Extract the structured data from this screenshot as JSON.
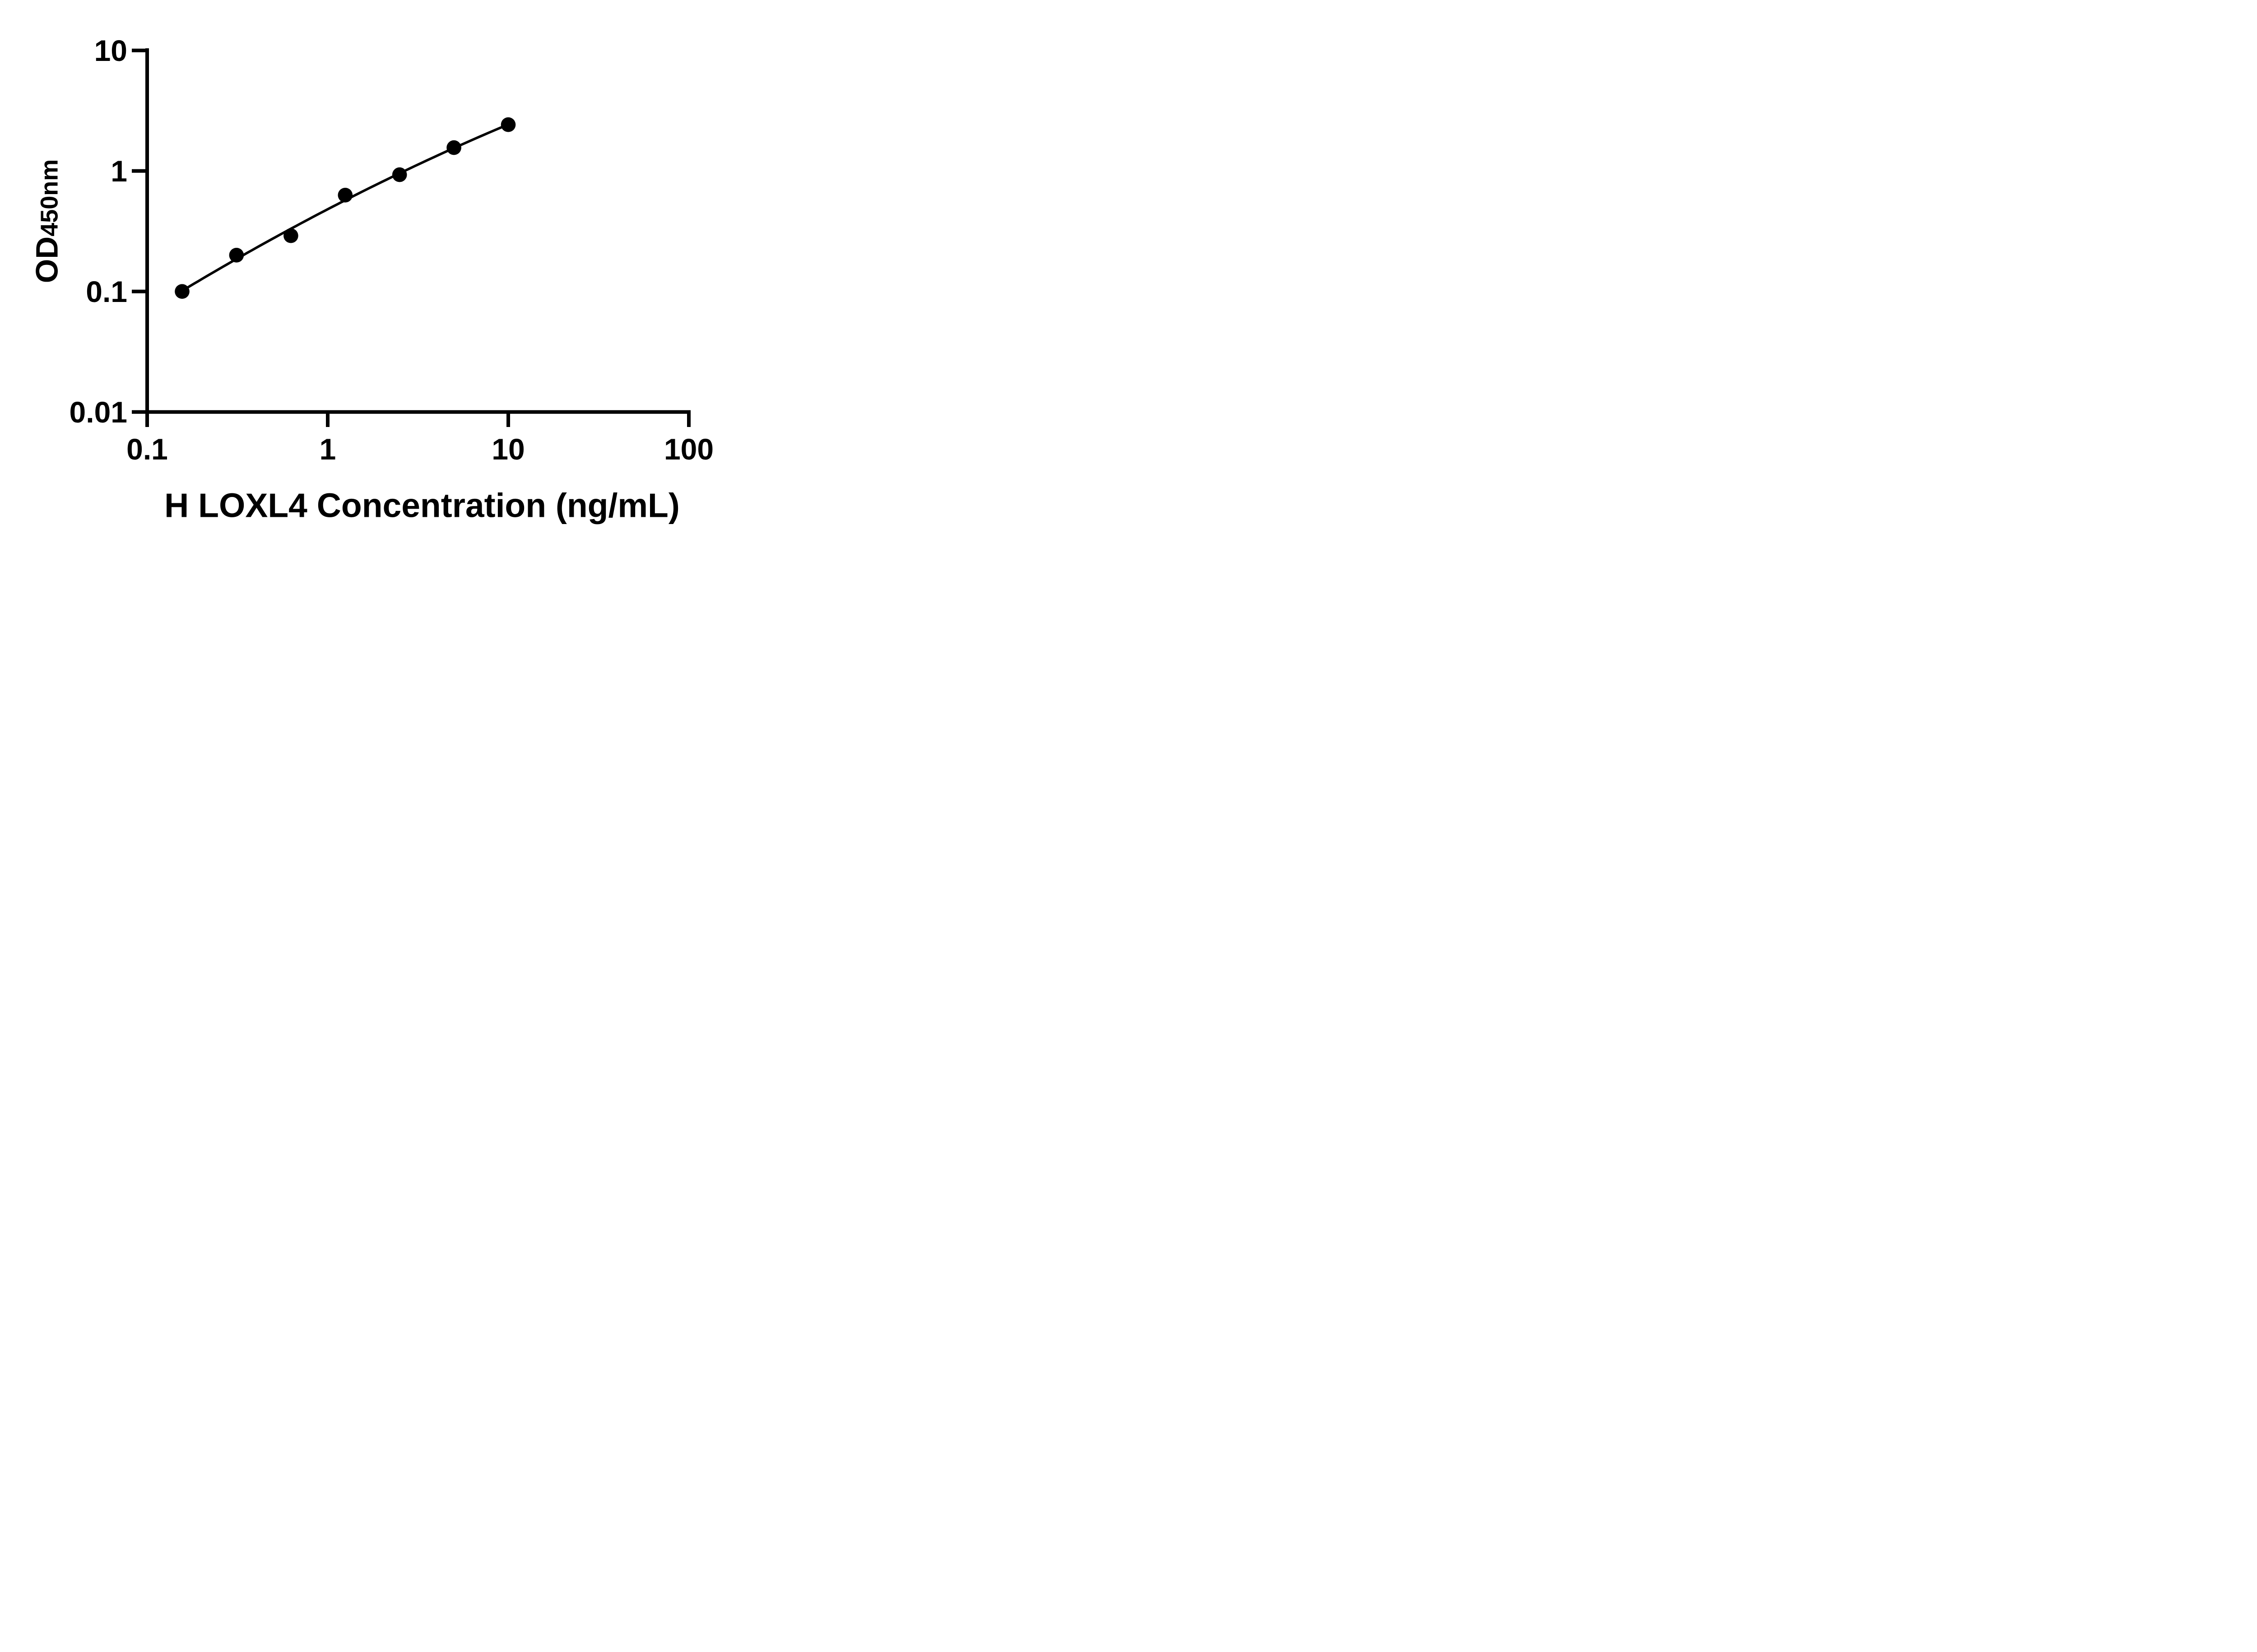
{
  "chart_data": {
    "type": "scatter",
    "title": "",
    "xlabel": "H LOXL4 Concentration (ng/mL)",
    "ylabel": "OD450nm",
    "ylabel_main": "OD",
    "ylabel_sub": "450nm",
    "x_scale": "log10",
    "y_scale": "log10",
    "xlim": [
      0.1,
      100
    ],
    "ylim": [
      0.01,
      10
    ],
    "grid": false,
    "legend": "none",
    "x_ticks": [
      {
        "value": 0.1,
        "label": "0.1"
      },
      {
        "value": 1,
        "label": "1"
      },
      {
        "value": 10,
        "label": "10"
      },
      {
        "value": 100,
        "label": "100"
      }
    ],
    "y_ticks": [
      {
        "value": 10,
        "label": "10"
      },
      {
        "value": 1,
        "label": "1"
      },
      {
        "value": 0.1,
        "label": "0.1"
      },
      {
        "value": 0.01,
        "label": "0.01"
      }
    ],
    "series": [
      {
        "marker": "filled-circle",
        "line": "smooth-fit-curve",
        "x": [
          0.15625,
          0.3125,
          0.625,
          1.25,
          2.5,
          5,
          10
        ],
        "y": [
          0.1,
          0.2,
          0.29,
          0.63,
          0.93,
          1.56,
          2.42
        ]
      }
    ],
    "colors": {
      "points": "#000000",
      "line": "#000000",
      "axis": "#000000",
      "text": "#000000",
      "background": "#ffffff"
    }
  }
}
